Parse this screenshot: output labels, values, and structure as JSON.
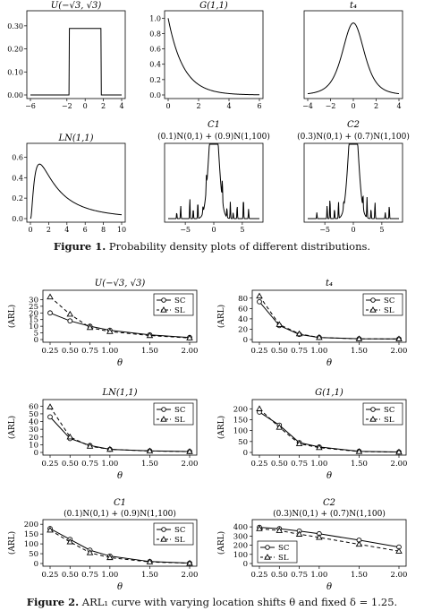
{
  "figure1": {
    "caption_label": "Figure 1.",
    "caption_text": "Probability density plots of different distributions.",
    "panels": [
      {
        "title": "U(−√3, √3)",
        "xticks": [
          "−6",
          "−2",
          "0",
          "2",
          "4"
        ],
        "yticks": [
          "0.00",
          "0.10",
          "0.20",
          "0.30"
        ]
      },
      {
        "title": "G(1,1)",
        "xticks": [
          "0",
          "2",
          "4",
          "6"
        ],
        "yticks": [
          "0.0",
          "0.2",
          "0.4",
          "0.6",
          "0.8",
          "1.0"
        ]
      },
      {
        "title": "t₄",
        "xticks": [
          "−4",
          "−2",
          "0",
          "2",
          "4"
        ],
        "yticks": []
      },
      {
        "title": "LN(1,1)",
        "xticks": [
          "0",
          "2",
          "4",
          "6",
          "8",
          "10"
        ],
        "yticks": [
          "0.0",
          "0.2",
          "0.4",
          "0.6"
        ]
      },
      {
        "title": "C1",
        "subtitle": "(0.1)N(0,1) + (0.9)N(1,100)",
        "xticks": [
          "−5",
          "0",
          "5"
        ],
        "yticks": []
      },
      {
        "title": "C2",
        "subtitle": "(0.3)N(0,1) + (0.7)N(1,100)",
        "xticks": [
          "−5",
          "0",
          "5"
        ],
        "yticks": []
      }
    ]
  },
  "figure2": {
    "caption_label": "Figure 2.",
    "caption_text": "ARL₁ curve with varying location shifts θ and fixed δ = 1.25."
  },
  "chart_data": [
    {
      "type": "line",
      "title": "U(−√3, √3)",
      "xlabel": "θ",
      "ylabel": "(ARL)",
      "x": [
        0.25,
        0.5,
        0.75,
        1.0,
        1.5,
        2.0
      ],
      "xticks": [
        "0.25",
        "0.50",
        "0.75",
        "1.00",
        "1.50",
        "2.00"
      ],
      "ylim": [
        0,
        35
      ],
      "yticks": [
        0,
        5,
        10,
        15,
        20,
        25,
        30
      ],
      "legend": "top-right",
      "series": [
        {
          "name": "SC",
          "values": [
            20,
            14,
            10,
            7,
            3.5,
            1.5
          ]
        },
        {
          "name": "SL",
          "values": [
            32,
            19,
            9,
            6,
            3,
            1.2
          ]
        }
      ]
    },
    {
      "type": "line",
      "title": "t₄",
      "xlabel": "θ",
      "ylabel": "(ARL)",
      "x": [
        0.25,
        0.5,
        0.75,
        1.0,
        1.5,
        2.0
      ],
      "xticks": [
        "0.25",
        "0.50",
        "0.75",
        "1.00",
        "1.50",
        "2.00"
      ],
      "ylim": [
        0,
        90
      ],
      "yticks": [
        0,
        20,
        40,
        60,
        80
      ],
      "legend": "top-right",
      "series": [
        {
          "name": "SC",
          "values": [
            73,
            27,
            10,
            4,
            1.5,
            1.2
          ]
        },
        {
          "name": "SL",
          "values": [
            84,
            29,
            11,
            4,
            1.3,
            1.1
          ]
        }
      ]
    },
    {
      "type": "line",
      "title": "LN(1,1)",
      "xlabel": "θ",
      "ylabel": "(ARL)",
      "x": [
        0.25,
        0.5,
        0.75,
        1.0,
        1.5,
        2.0
      ],
      "xticks": [
        "0.25",
        "0.50",
        "0.75",
        "1.00",
        "1.50",
        "2.00"
      ],
      "ylim": [
        0,
        65
      ],
      "yticks": [
        0,
        10,
        20,
        30,
        40,
        50,
        60
      ],
      "legend": "top-right",
      "series": [
        {
          "name": "SC",
          "values": [
            46,
            18,
            9,
            4,
            2,
            1.2
          ]
        },
        {
          "name": "SL",
          "values": [
            59,
            20,
            8,
            4,
            1.8,
            1.1
          ]
        }
      ]
    },
    {
      "type": "line",
      "title": "G(1,1)",
      "xlabel": "θ",
      "ylabel": "(ARL)",
      "x": [
        0.25,
        0.5,
        0.75,
        1.0,
        1.5,
        2.0
      ],
      "xticks": [
        "0.25",
        "0.50",
        "0.75",
        "1.00",
        "1.50",
        "2.00"
      ],
      "ylim": [
        0,
        230
      ],
      "yticks": [
        0,
        50,
        100,
        150,
        200
      ],
      "legend": "top-right",
      "series": [
        {
          "name": "SC",
          "values": [
            185,
            125,
            45,
            25,
            5,
            2
          ]
        },
        {
          "name": "SL",
          "values": [
            200,
            115,
            40,
            22,
            4,
            1.5
          ]
        }
      ]
    },
    {
      "type": "line",
      "title": "C1",
      "subtitle": "(0.1)N(0,1) + (0.9)N(1,100)",
      "xlabel": "θ",
      "ylabel": "(ARL)",
      "x": [
        0.25,
        0.5,
        0.75,
        1.0,
        1.5,
        2.0
      ],
      "xticks": [
        "0.25",
        "0.50",
        "0.75",
        "1.00",
        "1.50",
        "2.00"
      ],
      "ylim": [
        0,
        210
      ],
      "yticks": [
        0,
        50,
        100,
        150,
        200
      ],
      "legend": "top-right",
      "series": [
        {
          "name": "SC",
          "values": [
            178,
            123,
            68,
            38,
            10,
            2
          ]
        },
        {
          "name": "SL",
          "values": [
            170,
            110,
            55,
            30,
            8,
            1.5
          ]
        }
      ]
    },
    {
      "type": "line",
      "title": "C2",
      "subtitle": "(0.3)N(0,1) + (0.7)N(1,100)",
      "xlabel": "θ",
      "ylabel": "(ARL)",
      "x": [
        0.25,
        0.5,
        0.75,
        1.0,
        1.5,
        2.0
      ],
      "xticks": [
        "0.25",
        "0.50",
        "0.75",
        "1.00",
        "1.50",
        "2.00"
      ],
      "ylim": [
        0,
        450
      ],
      "yticks": [
        0,
        100,
        200,
        300,
        400
      ],
      "legend": "bottom-left",
      "series": [
        {
          "name": "SC",
          "values": [
            395,
            380,
            355,
            325,
            255,
            180
          ]
        },
        {
          "name": "SL",
          "values": [
            380,
            360,
            320,
            285,
            210,
            135
          ]
        }
      ]
    }
  ]
}
